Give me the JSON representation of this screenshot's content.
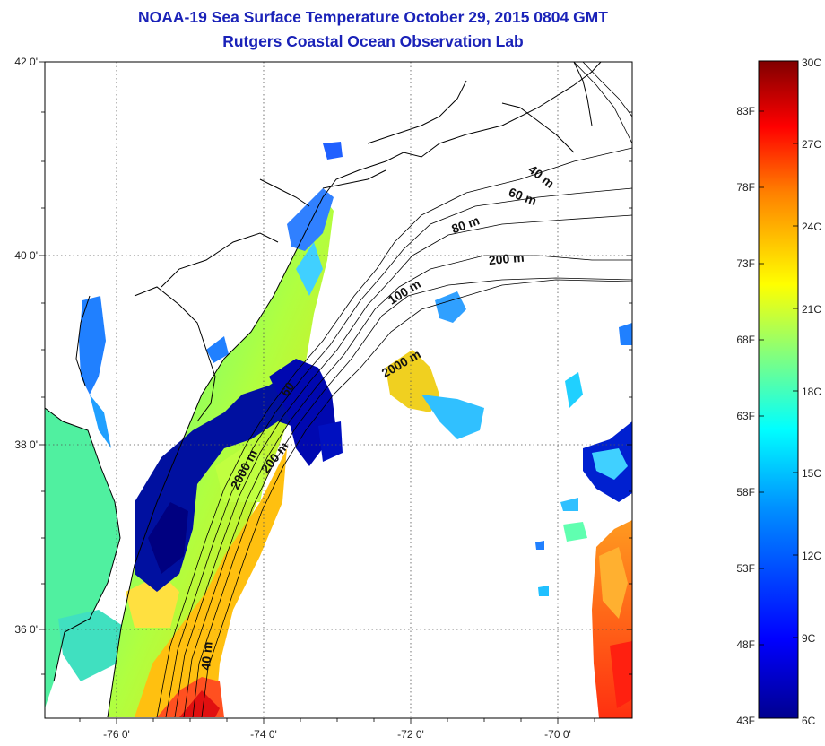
{
  "header": {
    "title": "NOAA-19 Sea Surface Temperature October 29, 2015 0804 GMT",
    "subtitle": "Rutgers Coastal Ocean Observation Lab"
  },
  "map": {
    "lat_ticks": [
      "42 0'",
      "40 0'",
      "38 0'",
      "36 0'"
    ],
    "lon_ticks": [
      "-76 0'",
      "-74 0'",
      "-72 0'",
      "-70 0'"
    ],
    "depth_labels": [
      "40 m",
      "60 m",
      "80 m",
      "200 m",
      "100 m",
      "2000 m",
      "60",
      "2000 m",
      "200 m",
      "40 m"
    ],
    "colors": {
      "land": "#ffffff",
      "coast": "#000000",
      "frame": "#000000"
    }
  },
  "colorbar": {
    "fahrenheit_labels": [
      "83F",
      "78F",
      "73F",
      "68F",
      "63F",
      "58F",
      "53F",
      "48F",
      "43F"
    ],
    "celsius_labels": [
      "30C",
      "27C",
      "24C",
      "21C",
      "18C",
      "15C",
      "12C",
      "9C",
      "6C"
    ],
    "colors": [
      "#800000",
      "#ff0000",
      "#ff8000",
      "#ffff00",
      "#80ff80",
      "#00ffff",
      "#0080ff",
      "#0000ff",
      "#00008f"
    ]
  }
}
